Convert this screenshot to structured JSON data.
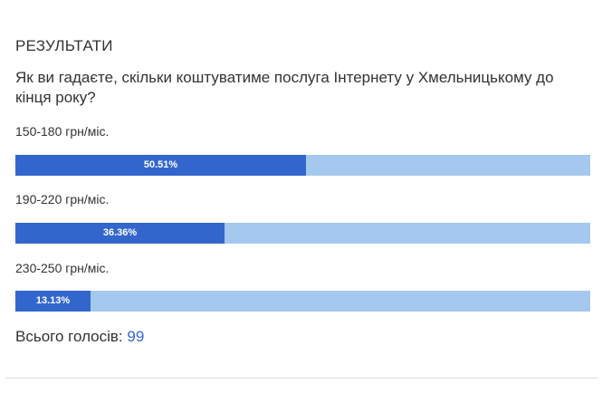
{
  "poll": {
    "heading": "РЕЗУЛЬТАТИ",
    "question": "Як ви гадаєте, скільки коштуватиме послуга Інтернету у Хмельницькому до кінця року?",
    "options": [
      {
        "label": "150-180 грн/міс.",
        "percent_label": "50.51%",
        "percent": 50.51
      },
      {
        "label": "190-220 грн/міс.",
        "percent_label": "36.36%",
        "percent": 36.36
      },
      {
        "label": "230-250 грн/міс.",
        "percent_label": "13.13%",
        "percent": 13.13
      }
    ],
    "total_label": "Всього голосів:",
    "total_votes": "99"
  },
  "colors": {
    "bar_fill": "#3366cc",
    "bar_track": "#a5c8ee",
    "total_count": "#3366cc"
  }
}
